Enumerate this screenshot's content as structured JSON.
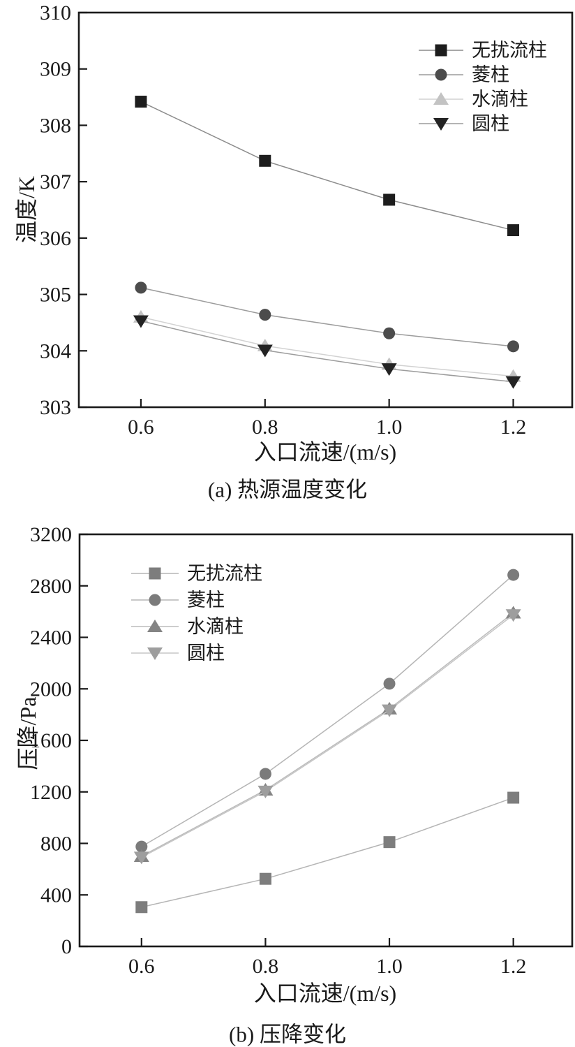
{
  "colors": {
    "axis": "#1a1a1a",
    "background": "#ffffff"
  },
  "chart_data": [
    {
      "id": "a",
      "type": "line",
      "caption": "(a) 热源温度变化",
      "xlabel": "入口流速/(m/s)",
      "ylabel": "温度/K",
      "x": [
        0.6,
        0.8,
        1.0,
        1.2
      ],
      "xtick_labels": [
        "0.6",
        "0.8",
        "1.0",
        "1.2"
      ],
      "xlim": [
        0.5,
        1.295
      ],
      "ylim": [
        303,
        310
      ],
      "yticks": [
        303,
        304,
        305,
        306,
        307,
        308,
        309,
        310
      ],
      "ytick_labels": [
        "303",
        "304",
        "305",
        "306",
        "307",
        "308",
        "309",
        "310"
      ],
      "grid": false,
      "legend_position": "top-right",
      "series": [
        {
          "key": "undisturbed",
          "name": "无扰流柱",
          "marker": "square",
          "marker_color": "#1d1d1d",
          "line_color": "#8c8c8c",
          "values": [
            308.42,
            307.37,
            306.68,
            306.14
          ]
        },
        {
          "key": "diamond-pillar",
          "name": "菱柱",
          "marker": "circle",
          "marker_color": "#4c4c4c",
          "line_color": "#9c9c9c",
          "values": [
            305.12,
            304.64,
            304.31,
            304.08
          ]
        },
        {
          "key": "droplet-pillar",
          "name": "水滴柱",
          "marker": "triangle-up",
          "marker_color": "#c3c3c3",
          "line_color": "#d2d2d2",
          "values": [
            304.6,
            304.09,
            303.76,
            303.55
          ]
        },
        {
          "key": "cylinder",
          "name": "圆柱",
          "marker": "triangle-down",
          "marker_color": "#232323",
          "line_color": "#9c9c9c",
          "values": [
            304.53,
            304.01,
            303.68,
            303.45
          ]
        }
      ]
    },
    {
      "id": "b",
      "type": "line",
      "caption": "(b) 压降变化",
      "xlabel": "入口流速/(m/s)",
      "ylabel": "压降/Pa",
      "x": [
        0.6,
        0.8,
        1.0,
        1.2
      ],
      "xtick_labels": [
        "0.6",
        "0.8",
        "1.0",
        "1.2"
      ],
      "xlim": [
        0.5,
        1.295
      ],
      "ylim": [
        0,
        3200
      ],
      "yticks": [
        0,
        400,
        800,
        1200,
        1600,
        2000,
        2400,
        2800,
        3200
      ],
      "ytick_labels": [
        "0",
        "400",
        "800",
        "1200",
        "1600",
        "2000",
        "2400",
        "2800",
        "3200"
      ],
      "grid": false,
      "legend_position": "top-left",
      "series": [
        {
          "key": "undisturbed",
          "name": "无扰流柱",
          "marker": "square",
          "marker_color": "#7d7d7d",
          "line_color": "#b5b5b5",
          "values": [
            305,
            525,
            810,
            1155
          ]
        },
        {
          "key": "diamond-pillar",
          "name": "菱柱",
          "marker": "circle",
          "marker_color": "#7b7b7b",
          "line_color": "#b5b5b5",
          "values": [
            775,
            1340,
            2040,
            2885
          ]
        },
        {
          "key": "droplet-pillar",
          "name": "水滴柱",
          "marker": "triangle-up",
          "marker_color": "#848484",
          "line_color": "#bcbcbc",
          "values": [
            700,
            1215,
            1845,
            2590
          ]
        },
        {
          "key": "cylinder",
          "name": "圆柱",
          "marker": "triangle-down",
          "marker_color": "#9e9e9e",
          "line_color": "#c6c6c6",
          "values": [
            692,
            1205,
            1835,
            2575
          ]
        }
      ]
    }
  ]
}
